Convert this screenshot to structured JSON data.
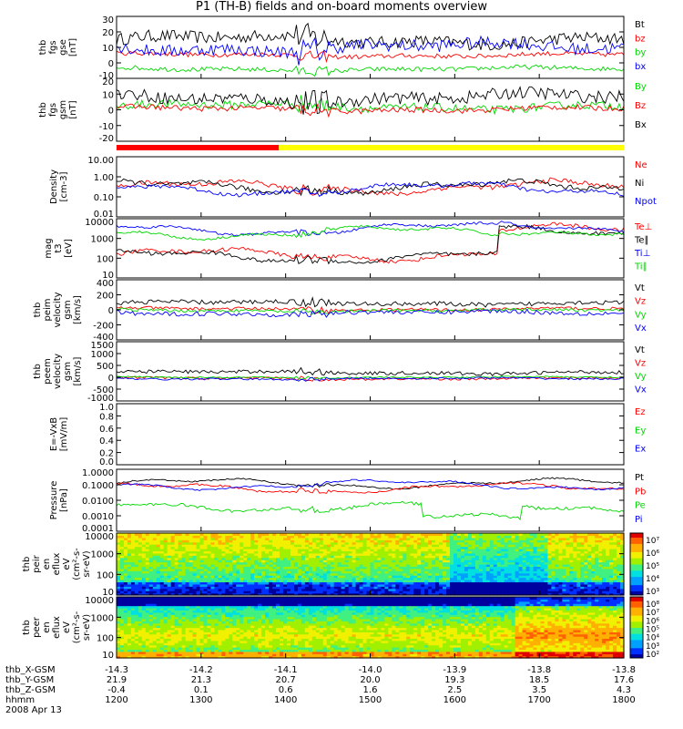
{
  "title": "P1 (TH-B) fields and on-board moments overview",
  "colors": {
    "black": "#000000",
    "red": "#ff0000",
    "green": "#00d800",
    "blue": "#0000ff",
    "yellow": "#ffff00"
  },
  "chart_data": [
    {
      "type": "line",
      "panel": "fgs_gse",
      "ylabel": [
        "thb",
        "fgs",
        "gse",
        "[nT]"
      ],
      "ylim": [
        -10,
        30
      ],
      "yticks": [
        "30",
        "20",
        "10",
        "0",
        "-10"
      ],
      "series": [
        {
          "name": "Bt",
          "color": "black",
          "level": 15,
          "amp": 8
        },
        {
          "name": "bz",
          "color": "red",
          "level": 5,
          "amp": 3
        },
        {
          "name": "by",
          "color": "green",
          "level": -4,
          "amp": 3
        },
        {
          "name": "bx",
          "color": "blue",
          "level": 10,
          "amp": 8
        }
      ]
    },
    {
      "type": "line",
      "panel": "fgs_gsm",
      "ylabel": [
        "thb",
        "fgs",
        "gsm",
        "[nT]"
      ],
      "ylim": [
        -25,
        20
      ],
      "yticks": [
        "20",
        "10",
        "0",
        "-10",
        "-20"
      ],
      "series": [
        {
          "name": "By",
          "color": "green",
          "level": 0,
          "amp": 6
        },
        {
          "name": "Bz",
          "color": "red",
          "level": -2,
          "amp": 4
        },
        {
          "name": "Bx",
          "color": "black",
          "level": 6,
          "amp": 9
        }
      ]
    },
    {
      "type": "line",
      "panel": "density",
      "ylabel": [
        "Density",
        "[cm-3]"
      ],
      "log": true,
      "ylim": [
        0.01,
        10
      ],
      "yticks": [
        "10.00",
        "1.00",
        "0.10",
        "0.01"
      ],
      "series": [
        {
          "name": "Ne",
          "color": "red",
          "level": 0.3,
          "amp": 0.5
        },
        {
          "name": "Ni",
          "color": "black",
          "level": 0.3,
          "amp": 0.5
        },
        {
          "name": "Npot",
          "color": "blue",
          "level": 0.25,
          "amp": 0.4
        }
      ]
    },
    {
      "type": "line",
      "panel": "temperature",
      "ylabel": [
        "mag",
        "t3",
        "[eV]"
      ],
      "log": true,
      "ylim": [
        10,
        10000
      ],
      "yticks": [
        "10000",
        "1000",
        "100",
        "10"
      ],
      "series": [
        {
          "name": "Te⊥",
          "color": "red",
          "level": 150,
          "amp": 0.4
        },
        {
          "name": "Te∥",
          "color": "black",
          "level": 120,
          "amp": 0.4
        },
        {
          "name": "Ti⊥",
          "color": "blue",
          "level": 3000,
          "amp": 0.25
        },
        {
          "name": "Ti∥",
          "color": "green",
          "level": 2000,
          "amp": 0.25
        }
      ]
    },
    {
      "type": "line",
      "panel": "peim_velocity",
      "ylabel": [
        "thb",
        "peim",
        "velocity",
        "gsm",
        "[km/s]"
      ],
      "ylim": [
        -400,
        400
      ],
      "yticks": [
        "400",
        "200",
        "0",
        "-200",
        "-400"
      ],
      "series": [
        {
          "name": "Vt",
          "color": "black",
          "level": 90,
          "amp": 60
        },
        {
          "name": "Vz",
          "color": "red",
          "level": 10,
          "amp": 40
        },
        {
          "name": "Vy",
          "color": "green",
          "level": -10,
          "amp": 40
        },
        {
          "name": "Vx",
          "color": "blue",
          "level": -40,
          "amp": 60
        }
      ]
    },
    {
      "type": "line",
      "panel": "peem_velocity",
      "ylabel": [
        "thb",
        "peem",
        "velocity",
        "gsm",
        "[km/s]"
      ],
      "ylim": [
        -1000,
        1500
      ],
      "yticks": [
        "1500",
        "1000",
        "500",
        "0",
        "-500",
        "-1000"
      ],
      "series": [
        {
          "name": "Vt",
          "color": "black",
          "level": 200,
          "amp": 150
        },
        {
          "name": "Vz",
          "color": "red",
          "level": -50,
          "amp": 100
        },
        {
          "name": "Vy",
          "color": "green",
          "level": 0,
          "amp": 60
        },
        {
          "name": "Vx",
          "color": "blue",
          "level": -60,
          "amp": 80
        }
      ]
    },
    {
      "type": "line",
      "panel": "e_vxb",
      "ylabel": [
        "E=-VxB",
        "[mV/m]"
      ],
      "ylim": [
        0,
        1
      ],
      "yticks": [
        "1.0",
        "0.8",
        "0.6",
        "0.4",
        "0.2",
        "0.0"
      ],
      "series": [
        {
          "name": "Ez",
          "color": "red"
        },
        {
          "name": "Ey",
          "color": "green"
        },
        {
          "name": "Ex",
          "color": "blue"
        }
      ]
    },
    {
      "type": "line",
      "panel": "pressure",
      "ylabel": [
        "Pressure",
        "[nPa]"
      ],
      "log": true,
      "ylim": [
        0.0001,
        1
      ],
      "yticks": [
        "1.0000",
        "0.1000",
        "0.0100",
        "0.0010",
        "0.0001"
      ],
      "series": [
        {
          "name": "Pt",
          "color": "black",
          "level": 0.12,
          "amp": 0.2
        },
        {
          "name": "Pb",
          "color": "red",
          "level": 0.06,
          "amp": 0.3
        },
        {
          "name": "Pe",
          "color": "green",
          "level": 0.004,
          "amp": 0.4
        },
        {
          "name": "Pi",
          "color": "blue",
          "level": 0.1,
          "amp": 0.2
        }
      ]
    },
    {
      "type": "heatmap",
      "panel": "peir_efflux",
      "ylabel": [
        "thb",
        "peir",
        "en",
        "eflux",
        "eV",
        "(cm^2-s-",
        "sr-eV)"
      ],
      "log": true,
      "ylim": [
        10,
        20000
      ],
      "yticks": [
        "10000",
        "1000",
        "100",
        "10"
      ],
      "colorbar": [
        "10^7",
        "10^6",
        "10^5",
        "10^4",
        "10^3"
      ]
    },
    {
      "type": "heatmap",
      "panel": "peer_efflux",
      "ylabel": [
        "thb",
        "peer",
        "en",
        "eflux",
        "eV",
        "(cm^2-s-",
        "sr-eV)"
      ],
      "log": true,
      "ylim": [
        7,
        20000
      ],
      "yticks": [
        "10000",
        "1000",
        "100",
        "10"
      ],
      "colorbar": [
        "10^8",
        "10^7",
        "10^6",
        "10^5",
        "10^4",
        "10^3",
        "10^2"
      ]
    }
  ],
  "mode_bar": {
    "segments": [
      {
        "color": "red",
        "from": 0,
        "to": 0.32
      },
      {
        "color": "yellow",
        "from": 0.32,
        "to": 1
      }
    ]
  },
  "xaxis": {
    "rows": [
      {
        "label": "thb_X-GSM",
        "values": [
          "-14.3",
          "-14.2",
          "-14.1",
          "-14.0",
          "-13.9",
          "-13.8",
          "-13.8"
        ]
      },
      {
        "label": "thb_Y-GSM",
        "values": [
          "21.9",
          "21.3",
          "20.7",
          "20.0",
          "19.3",
          "18.5",
          "17.6"
        ]
      },
      {
        "label": "thb_Z-GSM",
        "values": [
          "-0.4",
          "0.1",
          "0.6",
          "1.6",
          "2.5",
          "3.5",
          "4.3"
        ]
      },
      {
        "label": "hhmm",
        "values": [
          "1200",
          "1300",
          "1400",
          "1500",
          "1600",
          "1700",
          "1800"
        ]
      }
    ],
    "date": "2008 Apr 13"
  }
}
